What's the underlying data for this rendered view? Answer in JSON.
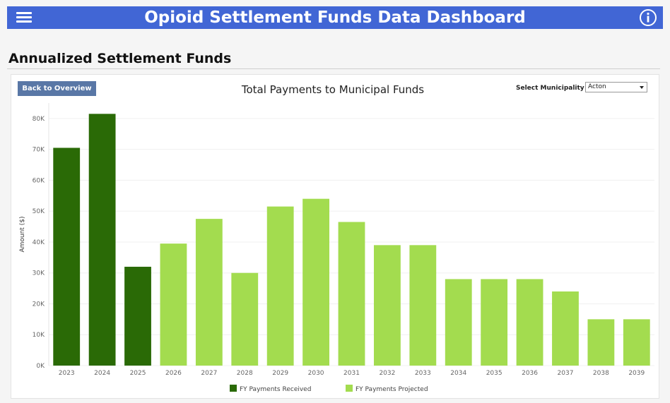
{
  "header": {
    "title": "Opioid Settlement Funds Data Dashboard",
    "menu_icon": "hamburger-menu-icon",
    "info_icon": "info-icon",
    "background": "#4166d5"
  },
  "section": {
    "title": "Annualized Settlement Funds"
  },
  "controls": {
    "back_label": "Back to Overview",
    "select_label": "Select Municipality",
    "select_value": "Acton"
  },
  "chart_data": {
    "type": "bar",
    "title": "Total Payments to Municipal Funds",
    "xlabel": "",
    "ylabel": "Amount ($)",
    "ylim": [
      0,
      85000
    ],
    "yticks": [
      0,
      10000,
      20000,
      30000,
      40000,
      50000,
      60000,
      70000,
      80000
    ],
    "ytick_labels": [
      "0K",
      "10K",
      "20K",
      "30K",
      "40K",
      "50K",
      "60K",
      "70K",
      "80K"
    ],
    "grid": true,
    "legend_position": "bottom-center",
    "categories": [
      "2023",
      "2024",
      "2025",
      "2026",
      "2027",
      "2028",
      "2029",
      "2030",
      "2031",
      "2032",
      "2033",
      "2034",
      "2035",
      "2036",
      "2037",
      "2038",
      "2039"
    ],
    "values": [
      70500,
      81500,
      32000,
      39500,
      47500,
      30000,
      51500,
      54000,
      46500,
      39000,
      39000,
      28000,
      28000,
      28000,
      24000,
      15000,
      15000
    ],
    "bar_series": [
      "received",
      "received",
      "received",
      "projected",
      "projected",
      "projected",
      "projected",
      "projected",
      "projected",
      "projected",
      "projected",
      "projected",
      "projected",
      "projected",
      "projected",
      "projected",
      "projected"
    ],
    "series": [
      {
        "key": "received",
        "name": "FY Payments Received",
        "color": "#2a6a06"
      },
      {
        "key": "projected",
        "name": "FY Payments Projected",
        "color": "#a3dc4f"
      }
    ]
  }
}
